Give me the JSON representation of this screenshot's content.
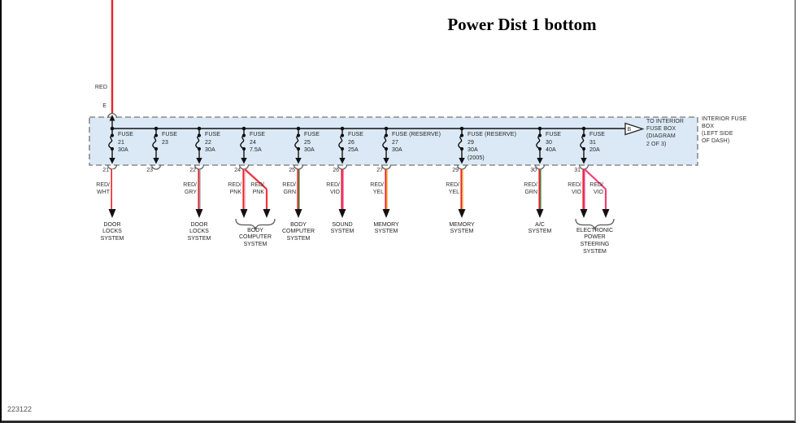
{
  "title": "Power Dist 1 bottom",
  "doc_number": "223122",
  "supply": {
    "wire_color": "RED",
    "terminal": "E"
  },
  "interior_box_note": {
    "l1": "INTERIOR FUSE",
    "l2": "BOX",
    "l3": "(LEFT SIDE",
    "l4": "OF DASH)"
  },
  "connector_b": {
    "letter": "B",
    "l1": "TO INTERIOR",
    "l2": "FUSE BOX",
    "l3": "(DIAGRAM",
    "l4": "2 OF 3)"
  },
  "fuses": [
    {
      "name": "FUSE",
      "number": "21",
      "amps": "30A",
      "pin": "21",
      "wires": [
        {
          "line1": "RED/",
          "line2": "WHT"
        }
      ],
      "system": [
        "DOOR",
        "LOCKS",
        "SYSTEM"
      ]
    },
    {
      "name": "FUSE",
      "number": "23",
      "pin": "23",
      "wires": [],
      "system": []
    },
    {
      "name": "FUSE",
      "number": "22",
      "amps": "30A",
      "pin": "22",
      "wires": [
        {
          "line1": "RED/",
          "line2": "GRY"
        }
      ],
      "system": [
        "DOOR",
        "LOCKS",
        "SYSTEM"
      ]
    },
    {
      "name": "FUSE",
      "number": "24",
      "amps": "7.5A",
      "pin": "24",
      "wires": [
        {
          "line1": "RED/",
          "line2": "PNK"
        },
        {
          "line1": "RED/",
          "line2": "PNK"
        }
      ],
      "system": [
        "BODY",
        "COMPUTER",
        "SYSTEM"
      ]
    },
    {
      "name": "FUSE",
      "number": "25",
      "amps": "30A",
      "pin": "25",
      "wires": [
        {
          "line1": "RED/",
          "line2": "GRN"
        }
      ],
      "system": [
        "BODY",
        "COMPUTER",
        "SYSTEM"
      ]
    },
    {
      "name": "FUSE",
      "number": "26",
      "amps": "25A",
      "pin": "26",
      "wires": [
        {
          "line1": "RED/",
          "line2": "VIO"
        }
      ],
      "system": [
        "SOUND",
        "SYSTEM"
      ]
    },
    {
      "name": "FUSE (RESERVE)",
      "number": "27",
      "amps": "30A",
      "pin": "27",
      "wires": [
        {
          "line1": "RED/",
          "line2": "YEL"
        }
      ],
      "system": [
        "MEMORY",
        "SYSTEM"
      ]
    },
    {
      "name": "FUSE (RESERVE)",
      "number": "29",
      "amps": "30A",
      "note": "(2005)",
      "pin": "29",
      "wires": [
        {
          "line1": "RED/",
          "line2": "YEL"
        }
      ],
      "system": [
        "MEMORY",
        "SYSTEM"
      ]
    },
    {
      "name": "FUSE",
      "number": "30",
      "amps": "40A",
      "pin": "30",
      "wires": [
        {
          "line1": "RED/",
          "line2": "GRN"
        }
      ],
      "system": [
        "A/C",
        "SYSTEM"
      ]
    },
    {
      "name": "FUSE",
      "number": "31",
      "amps": "20A",
      "pin": "31",
      "wires": [
        {
          "line1": "RED/",
          "line2": "VIO"
        },
        {
          "line1": "RED/",
          "line2": "VIO"
        }
      ],
      "system": [
        "ELECTRONIC",
        "POWER",
        "STEERING",
        "SYSTEM"
      ]
    }
  ],
  "colors": {
    "wire_red": "#e8232a",
    "box_fill": "#dbe9f6",
    "box_dash": "#8a8a8a",
    "line_black": "#111111",
    "tracers": {
      "WHT": "#ffffff",
      "GRY": "#9c9c9c",
      "PNK": "#ff8ca0",
      "GRN": "#55803f",
      "VIO": "#f2418a",
      "YEL": "#f59d2f"
    },
    "pair_solid": {
      "PNK": "#ee3340",
      "VIO": "#f23e77"
    }
  }
}
